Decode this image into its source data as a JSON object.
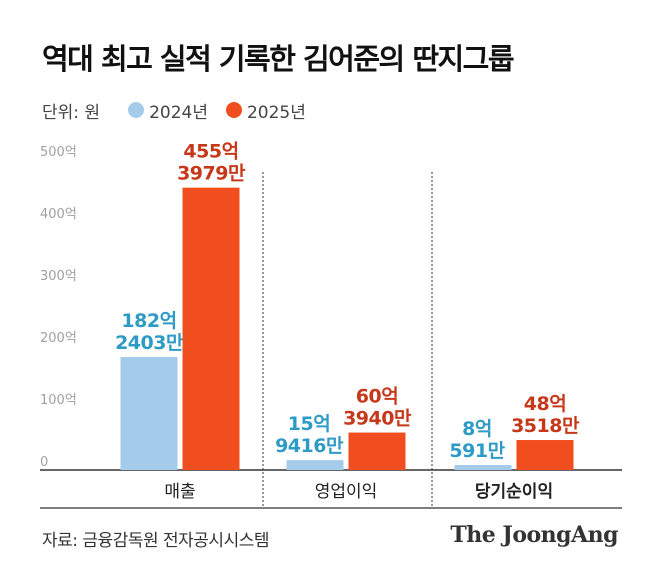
{
  "title": "역대 최고 실적 기록한 김어준의 딴지그룹",
  "unit_label": "단위: 원",
  "legend": [
    {
      "name": "2024년",
      "color": "#a5cbea"
    },
    {
      "name": "2025년",
      "color": "#f04e1f"
    }
  ],
  "source": "자료: 금융감독원 전자공시시스템",
  "brand": "The JoongAng",
  "chart_data": {
    "type": "bar",
    "categories": [
      "매출",
      "영업이익",
      "당기순이익"
    ],
    "series": [
      {
        "name": "2024년",
        "color": "#a5cbea",
        "label_color": "#2e9bc6",
        "values": [
          182.2403,
          15.9416,
          8.0591
        ],
        "labels": [
          [
            "182억",
            "2403만"
          ],
          [
            "15억",
            "9416만"
          ],
          [
            "8억",
            "591만"
          ]
        ]
      },
      {
        "name": "2025년",
        "color": "#f04e1f",
        "label_color": "#c7381a",
        "values": [
          455.3979,
          60.394,
          48.3518
        ],
        "labels": [
          [
            "455억",
            "3979만"
          ],
          [
            "60억",
            "3940만"
          ],
          [
            "48억",
            "3518만"
          ]
        ]
      }
    ],
    "yticks": [
      0,
      100,
      200,
      300,
      400,
      500
    ],
    "ytick_labels": [
      "0",
      "100억",
      "200억",
      "300억",
      "400억",
      "500억"
    ],
    "ylim": [
      0,
      500
    ],
    "grid": false
  }
}
